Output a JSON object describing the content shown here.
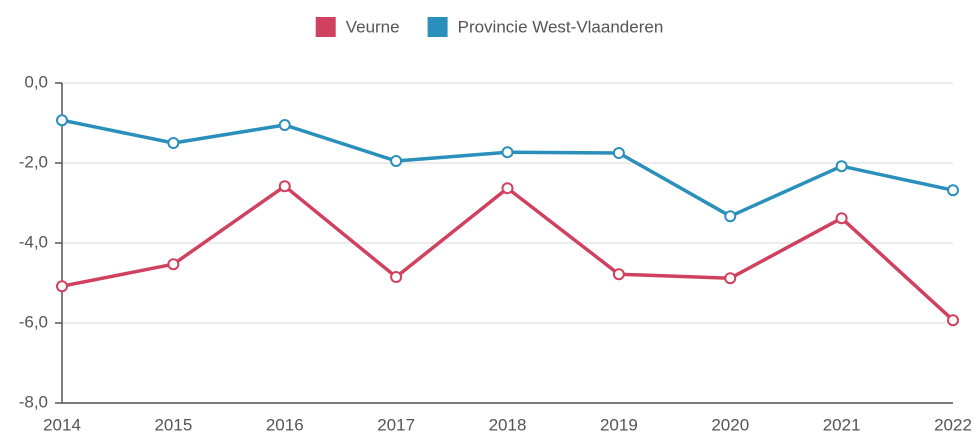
{
  "chart_data": {
    "type": "line",
    "categories": [
      "2014",
      "2015",
      "2016",
      "2017",
      "2018",
      "2019",
      "2020",
      "2021",
      "2022"
    ],
    "series": [
      {
        "name": "Veurne",
        "color": "#d0415f",
        "values": [
          -5.08,
          -4.53,
          -2.58,
          -4.85,
          -2.63,
          -4.78,
          -4.88,
          -3.38,
          -5.93
        ]
      },
      {
        "name": "Provincie West-Vlaanderen",
        "color": "#2b8fbc",
        "values": [
          -0.93,
          -1.5,
          -1.05,
          -1.95,
          -1.73,
          -1.75,
          -3.33,
          -2.08,
          -2.68
        ]
      }
    ],
    "ylim": [
      -8,
      0
    ],
    "yticks": [
      {
        "value": -8,
        "label": "-8,0"
      },
      {
        "value": -6,
        "label": "-6,0"
      },
      {
        "value": -4,
        "label": "-4,0"
      },
      {
        "value": -2,
        "label": "-2,0"
      },
      {
        "value": 0,
        "label": "0,0"
      }
    ],
    "grid": true,
    "legend": "top"
  }
}
